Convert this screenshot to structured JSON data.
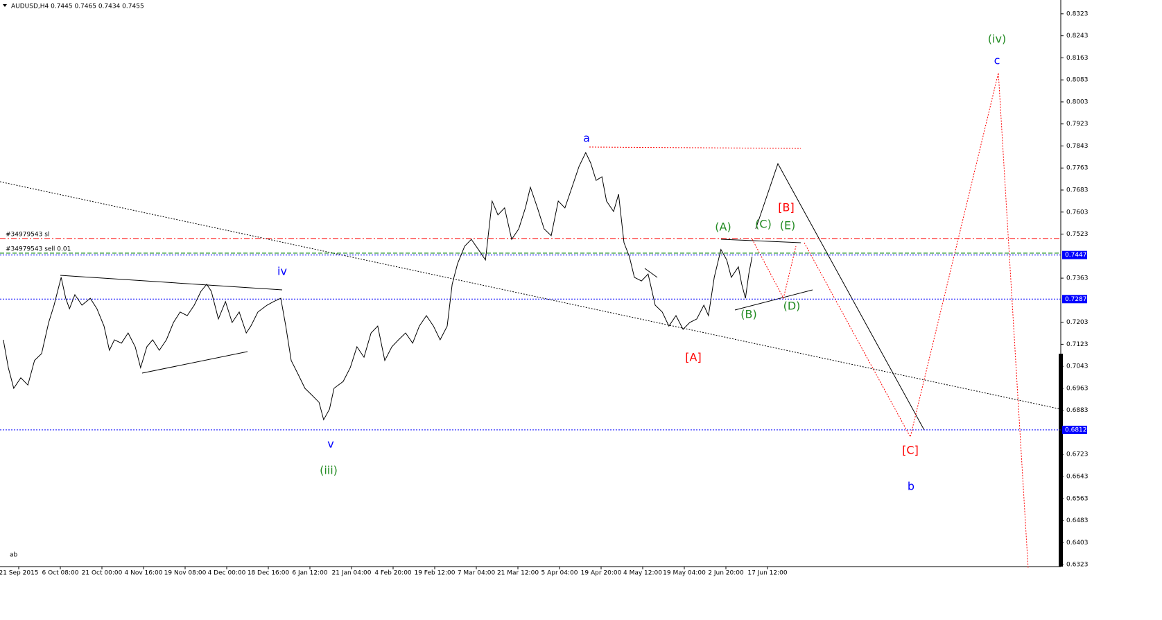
{
  "chart_data": {
    "type": "line",
    "title": "AUDUSD,H4  0.7445 0.7465 0.7434 0.7455",
    "footer": "ab",
    "xlim": [
      -0.45,
      25.05
    ],
    "xticks": [
      {
        "value": 0,
        "label": "21 Sep 2015"
      },
      {
        "value": 1,
        "label": "6 Oct 08:00"
      },
      {
        "value": 2,
        "label": "21 Oct 00:00"
      },
      {
        "value": 3,
        "label": "4 Nov 16:00"
      },
      {
        "value": 4,
        "label": "19 Nov 08:00"
      },
      {
        "value": 5,
        "label": "4 Dec 00:00"
      },
      {
        "value": 6,
        "label": "18 Dec 16:00"
      },
      {
        "value": 7,
        "label": "6 Jan 12:00"
      },
      {
        "value": 8,
        "label": "21 Jan 04:00"
      },
      {
        "value": 9,
        "label": "4 Feb 20:00"
      },
      {
        "value": 10,
        "label": "19 Feb 12:00"
      },
      {
        "value": 11,
        "label": "7 Mar 04:00"
      },
      {
        "value": 12,
        "label": "21 Mar 12:00"
      },
      {
        "value": 13,
        "label": "5 Apr 04:00"
      },
      {
        "value": 14,
        "label": "19 Apr 20:00"
      },
      {
        "value": 15,
        "label": "4 May 12:00"
      },
      {
        "value": 16,
        "label": "19 May 04:00"
      },
      {
        "value": 17,
        "label": "2 Jun 20:00"
      },
      {
        "value": 18,
        "label": "17 Jun 12:00"
      }
    ],
    "ylim": [
      0.6293,
      0.8373
    ],
    "yticks": [
      0.8323,
      0.8243,
      0.8163,
      0.8083,
      0.8003,
      0.7923,
      0.7843,
      0.7763,
      0.7683,
      0.7603,
      0.7523,
      0.7363,
      0.7203,
      0.7123,
      0.7043,
      0.6963,
      0.6883,
      0.6723,
      0.6643,
      0.6563,
      0.6483,
      0.6403,
      0.6323
    ],
    "grid": false,
    "series": [
      {
        "color": "#000000",
        "x": [
          -0.37,
          -0.25,
          -0.12,
          0.05,
          0.22,
          0.38,
          0.55,
          0.72,
          0.85,
          1.02,
          1.13,
          1.22,
          1.35,
          1.52,
          1.72,
          1.88,
          2.05,
          2.18,
          2.3,
          2.47,
          2.63,
          2.8,
          2.93,
          3.08,
          3.22,
          3.38,
          3.55,
          3.72,
          3.88,
          4.05,
          4.22,
          4.38,
          4.52,
          4.63,
          4.8,
          4.97,
          5.13,
          5.3,
          5.47,
          5.58,
          5.75,
          5.97,
          6.13,
          6.3,
          6.42,
          6.55,
          6.72,
          6.88,
          7.05,
          7.22,
          7.33,
          7.47,
          7.58,
          7.8,
          7.97,
          8.13,
          8.3,
          8.47,
          8.63,
          8.8,
          8.97,
          9.13,
          9.3,
          9.47,
          9.63,
          9.8,
          9.97,
          10.13,
          10.3,
          10.42,
          10.55,
          10.72,
          10.88,
          11.05,
          11.22,
          11.38,
          11.52,
          11.68,
          11.85,
          12.02,
          12.18,
          12.3,
          12.47,
          12.63,
          12.8,
          12.97,
          13.13,
          13.3,
          13.47,
          13.63,
          13.75,
          13.88,
          14.02,
          14.13,
          14.3,
          14.42,
          14.55,
          14.68,
          14.8,
          14.97,
          15.13,
          15.3,
          15.47,
          15.63,
          15.8,
          15.97,
          16.13,
          16.3,
          16.47,
          16.58,
          16.72,
          16.88,
          17.02,
          17.13,
          17.3,
          17.38,
          17.47,
          17.55,
          17.63
        ],
        "values": [
          0.7139,
          0.7038,
          0.6963,
          0.7001,
          0.6975,
          0.7064,
          0.7089,
          0.7202,
          0.7265,
          0.7366,
          0.729,
          0.7252,
          0.7303,
          0.7265,
          0.729,
          0.7252,
          0.7189,
          0.7101,
          0.7139,
          0.7127,
          0.7164,
          0.7114,
          0.7038,
          0.7114,
          0.7139,
          0.7101,
          0.7139,
          0.7202,
          0.724,
          0.7227,
          0.7265,
          0.7315,
          0.7341,
          0.7315,
          0.7215,
          0.7278,
          0.7202,
          0.724,
          0.7164,
          0.7189,
          0.724,
          0.7265,
          0.7278,
          0.729,
          0.7189,
          0.7064,
          0.7013,
          0.6963,
          0.6938,
          0.6912,
          0.6849,
          0.6887,
          0.6963,
          0.6988,
          0.7038,
          0.7114,
          0.7076,
          0.7164,
          0.7189,
          0.7064,
          0.7114,
          0.7139,
          0.7164,
          0.7127,
          0.7189,
          0.7227,
          0.7189,
          0.7139,
          0.7189,
          0.7341,
          0.7416,
          0.7479,
          0.7504,
          0.7467,
          0.7429,
          0.7643,
          0.7593,
          0.7618,
          0.7504,
          0.7542,
          0.7618,
          0.7693,
          0.7618,
          0.7542,
          0.7517,
          0.7643,
          0.7618,
          0.7693,
          0.7769,
          0.7819,
          0.7781,
          0.7718,
          0.7731,
          0.7643,
          0.7605,
          0.7668,
          0.7492,
          0.7441,
          0.7366,
          0.7353,
          0.7378,
          0.7265,
          0.724,
          0.7189,
          0.7227,
          0.7177,
          0.7202,
          0.7215,
          0.7265,
          0.7227,
          0.7366,
          0.7467,
          0.7429,
          0.7366,
          0.7404,
          0.7341,
          0.729,
          0.7378,
          0.7441
        ]
      }
    ],
    "price_levels": [
      {
        "value": 0.7447,
        "color": "#0000ff"
      },
      {
        "value": 0.7287,
        "color": "#0000ff"
      },
      {
        "value": 0.6812,
        "color": "#0000ff"
      }
    ],
    "order_lines": [
      {
        "label": "#34979543 sl",
        "value": 0.7507,
        "color": "#ff0000"
      },
      {
        "label": "#34979543 sell 0.01",
        "value": 0.7454,
        "color": "#008000"
      }
    ],
    "annotations": [
      {
        "text": "(iv)",
        "color": "#228b22"
      },
      {
        "text": "c",
        "color": "#0000ff"
      },
      {
        "text": "a",
        "color": "#0000ff"
      },
      {
        "text": "iv",
        "color": "#0000ff"
      },
      {
        "text": "v",
        "color": "#0000ff"
      },
      {
        "text": "(iii)",
        "color": "#228b22"
      },
      {
        "text": "[B]",
        "color": "#ff0000"
      },
      {
        "text": "(A)",
        "color": "#228b22"
      },
      {
        "text": "(C)",
        "color": "#228b22"
      },
      {
        "text": "(E)",
        "color": "#228b22"
      },
      {
        "text": "(D)",
        "color": "#228b22"
      },
      {
        "text": "(B)",
        "color": "#228b22"
      },
      {
        "text": "[A]",
        "color": "#ff0000"
      },
      {
        "text": "[C]",
        "color": "#ff0000"
      },
      {
        "text": "b",
        "color": "#0000ff"
      }
    ]
  }
}
